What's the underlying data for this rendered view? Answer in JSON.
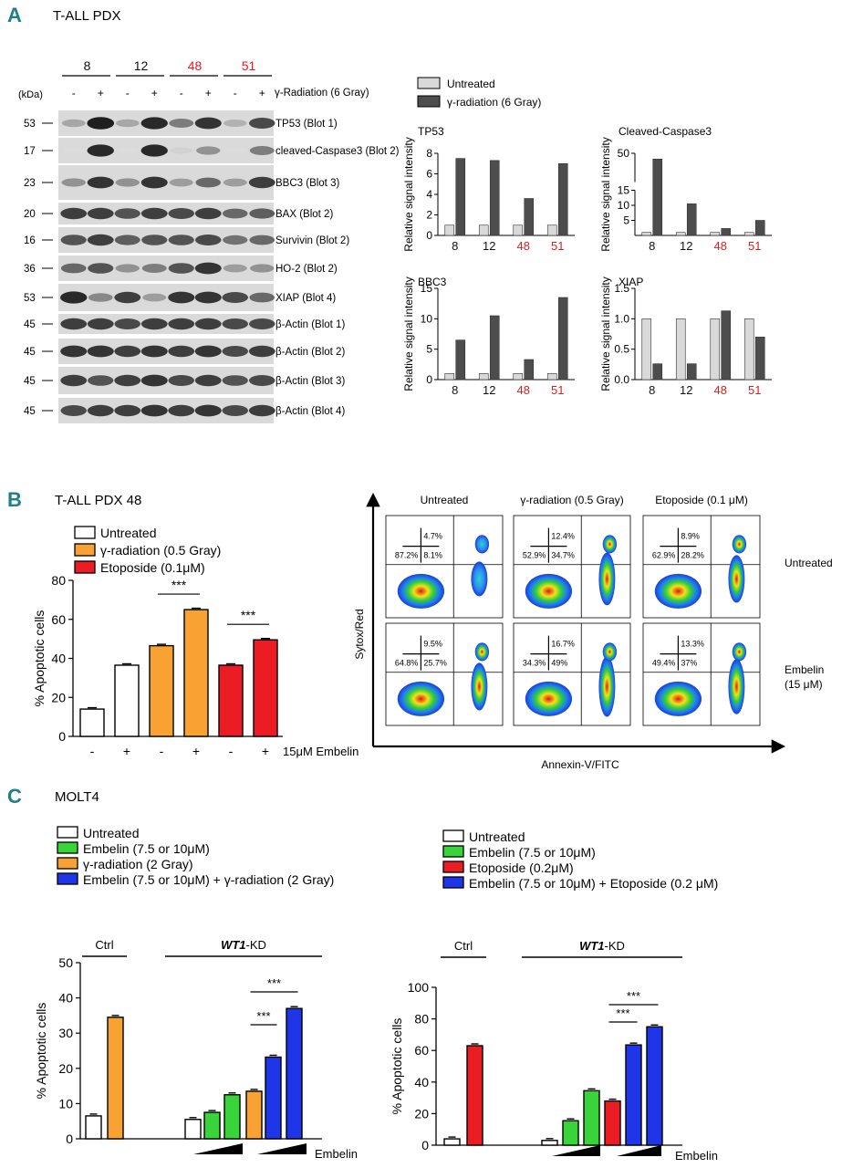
{
  "colors": {
    "panel_letter": "#1f7f8a",
    "red_label": "#e31a1c",
    "untreated": "#ffffff",
    "gamma": "#f7a233",
    "etoposide": "#ec1c24",
    "embelin": "#39d43a",
    "combo": "#1e35e8",
    "bar_light": "#d9d9d9",
    "bar_dark": "#4d4d4d"
  },
  "panelA": {
    "letter": "A",
    "title": "T-ALL PDX",
    "kda_label": "(kDa)",
    "samples": [
      {
        "label": "8",
        "color": "#111111"
      },
      {
        "label": "12",
        "color": "#111111"
      },
      {
        "label": "48",
        "color": "#e31a1c"
      },
      {
        "label": "51",
        "color": "#e31a1c"
      }
    ],
    "treatments": [
      "-",
      "+",
      "-",
      "+",
      "-",
      "+",
      "-",
      "+"
    ],
    "treatment_label": "γ-Radiation (6 Gray)",
    "blots": [
      {
        "kda": "53",
        "label": "TP53 (Blot 1)",
        "bands": [
          0.3,
          0.95,
          0.3,
          0.9,
          0.5,
          0.85,
          0.25,
          0.75
        ]
      },
      {
        "kda": "17",
        "label": "cleaved-Caspase3 (Blot 2)",
        "bands": [
          0.05,
          0.9,
          0.05,
          0.9,
          0.1,
          0.4,
          0.05,
          0.5
        ]
      },
      {
        "kda": "23",
        "label": "BBC3 (Blot 3)",
        "bands": [
          0.4,
          0.85,
          0.4,
          0.85,
          0.35,
          0.6,
          0.35,
          0.8
        ]
      },
      {
        "kda": "20",
        "label": "BAX (Blot 2)",
        "bands": [
          0.8,
          0.8,
          0.7,
          0.8,
          0.75,
          0.8,
          0.6,
          0.65
        ]
      },
      {
        "kda": "16",
        "label": "Survivin (Blot 2)",
        "bands": [
          0.7,
          0.8,
          0.65,
          0.7,
          0.7,
          0.75,
          0.55,
          0.6
        ]
      },
      {
        "kda": "36",
        "label": "HO-2 (Blot 2)",
        "bands": [
          0.6,
          0.7,
          0.4,
          0.5,
          0.7,
          0.85,
          0.35,
          0.4
        ]
      },
      {
        "kda": "53",
        "label": "XIAP (Blot 4)",
        "bands": [
          0.9,
          0.45,
          0.8,
          0.35,
          0.85,
          0.85,
          0.75,
          0.6
        ]
      },
      {
        "kda": "45",
        "label": "β-Actin (Blot 1)",
        "bands": [
          0.8,
          0.8,
          0.75,
          0.8,
          0.8,
          0.8,
          0.75,
          0.75
        ]
      },
      {
        "kda": "45",
        "label": "β-Actin  (Blot 2)",
        "bands": [
          0.85,
          0.85,
          0.8,
          0.85,
          0.8,
          0.85,
          0.75,
          0.8
        ]
      },
      {
        "kda": "45",
        "label": "β-Actin (Blot 3)",
        "bands": [
          0.8,
          0.7,
          0.8,
          0.85,
          0.75,
          0.8,
          0.7,
          0.75
        ]
      },
      {
        "kda": "45",
        "label": "β-Actin  (Blot 4)",
        "bands": [
          0.75,
          0.8,
          0.8,
          0.85,
          0.8,
          0.85,
          0.75,
          0.8
        ]
      }
    ],
    "legend": [
      {
        "label": "Untreated",
        "color": "#d9d9d9"
      },
      {
        "label": "γ-radiation (6 Gray)",
        "color": "#4d4d4d"
      }
    ]
  },
  "chart_data": [
    {
      "id": "tp53",
      "type": "bar",
      "title": "TP53",
      "ylabel": "Relative signal intensity",
      "categories": [
        "8",
        "12",
        "48",
        "51"
      ],
      "category_colors": [
        "#111111",
        "#111111",
        "#e31a1c",
        "#e31a1c"
      ],
      "ylim": [
        0,
        8
      ],
      "yticks": [
        0,
        2,
        4,
        6,
        8
      ],
      "series": [
        {
          "name": "Untreated",
          "values": [
            1,
            1,
            1,
            1
          ]
        },
        {
          "name": "γ-radiation (6 Gray)",
          "values": [
            7.5,
            7.3,
            3.6,
            7.0
          ]
        }
      ]
    },
    {
      "id": "casp3",
      "type": "bar",
      "title": "Cleaved-Caspase3",
      "ylabel": "Relative signal intensity",
      "categories": [
        "8",
        "12",
        "48",
        "51"
      ],
      "category_colors": [
        "#111111",
        "#111111",
        "#e31a1c",
        "#e31a1c"
      ],
      "ylim": [
        0,
        50
      ],
      "axis_break": [
        15,
        45
      ],
      "yticks": [
        5,
        10,
        15,
        50
      ],
      "series": [
        {
          "name": "Untreated",
          "values": [
            1,
            1,
            1,
            1
          ]
        },
        {
          "name": "γ-radiation (6 Gray)",
          "values": [
            49,
            10.5,
            2.3,
            5
          ]
        }
      ]
    },
    {
      "id": "bbc3",
      "type": "bar",
      "title": "BBC3",
      "ylabel": "Relative signal intensity",
      "categories": [
        "8",
        "12",
        "48",
        "51"
      ],
      "category_colors": [
        "#111111",
        "#111111",
        "#e31a1c",
        "#e31a1c"
      ],
      "ylim": [
        0,
        15
      ],
      "yticks": [
        0,
        5,
        10,
        15
      ],
      "series": [
        {
          "name": "Untreated",
          "values": [
            1,
            1,
            1,
            1
          ]
        },
        {
          "name": "γ-radiation (6 Gray)",
          "values": [
            6.5,
            10.5,
            3.3,
            13.5
          ]
        }
      ]
    },
    {
      "id": "xiap",
      "type": "bar",
      "title": "XIAP",
      "ylabel": "Relative signal intensity",
      "categories": [
        "8",
        "12",
        "48",
        "51"
      ],
      "category_colors": [
        "#111111",
        "#111111",
        "#e31a1c",
        "#e31a1c"
      ],
      "ylim": [
        0,
        1.5
      ],
      "yticks": [
        0.0,
        0.5,
        1.0,
        1.5
      ],
      "series": [
        {
          "name": "Untreated",
          "values": [
            1.0,
            1.0,
            1.0,
            1.0
          ]
        },
        {
          "name": "γ-radiation (6 Gray)",
          "values": [
            0.26,
            0.26,
            1.13,
            0.7
          ]
        }
      ]
    },
    {
      "id": "bpdx",
      "type": "bar",
      "title": "T-ALL PDX 48",
      "ylabel": "% Apoptotic cells",
      "xlabel": "15μM Embelin",
      "ylim": [
        0,
        80
      ],
      "yticks": [
        0,
        20,
        40,
        60,
        80
      ],
      "categories": [
        "-",
        "+",
        "-",
        "+",
        "-",
        "+"
      ],
      "values": [
        14,
        36.5,
        46.5,
        65,
        36.5,
        49.5
      ],
      "colors": [
        "#ffffff",
        "#ffffff",
        "#f7a233",
        "#f7a233",
        "#ec1c24",
        "#ec1c24"
      ],
      "significance": [
        {
          "label": "***",
          "from": 2,
          "to": 3
        },
        {
          "label": "***",
          "from": 4,
          "to": 5
        }
      ],
      "legend": [
        {
          "label": "Untreated",
          "color": "#ffffff"
        },
        {
          "label": "γ-radiation (0.5 Gray)",
          "color": "#f7a233"
        },
        {
          "label": "Etoposide (0.1μM)",
          "color": "#ec1c24"
        }
      ]
    },
    {
      "id": "c1",
      "type": "bar",
      "title": "MOLT4",
      "ylabel": "% Apoptotic cells",
      "xlabel": "Embelin",
      "ylim": [
        0,
        50
      ],
      "yticks": [
        0,
        10,
        20,
        30,
        40,
        50
      ],
      "groups": [
        {
          "label": "Ctrl",
          "italic": ""
        },
        {
          "label": "-KD",
          "italic": "WT1"
        }
      ],
      "values": [
        6.5,
        34.5,
        5.5,
        7.5,
        12.5,
        13.5,
        23.2,
        37
      ],
      "colors": [
        "#ffffff",
        "#f7a233",
        "#ffffff",
        "#39d43a",
        "#39d43a",
        "#f7a233",
        "#1e35e8",
        "#1e35e8"
      ],
      "significance": [
        {
          "label": "***",
          "from": 5,
          "to": 6
        },
        {
          "label": "***",
          "from": 5,
          "to": 7
        }
      ],
      "legend": [
        {
          "label": "Untreated",
          "color": "#ffffff"
        },
        {
          "label": "Embelin (7.5 or 10μM)",
          "color": "#39d43a"
        },
        {
          "label": "γ-radiation (2 Gray)",
          "color": "#f7a233"
        },
        {
          "label": "Embelin (7.5 or 10μM)  +  γ-radiation  (2 Gray)",
          "color": "#1e35e8"
        }
      ]
    },
    {
      "id": "c2",
      "type": "bar",
      "title": "MOLT4",
      "ylabel": "% Apoptotic cells",
      "xlabel": "Embelin",
      "ylim": [
        0,
        100
      ],
      "yticks": [
        0,
        20,
        40,
        60,
        80,
        100
      ],
      "groups": [
        {
          "label": "Ctrl",
          "italic": ""
        },
        {
          "label": "-KD",
          "italic": "WT1"
        }
      ],
      "values": [
        4,
        63,
        3,
        15.5,
        34.5,
        28,
        63.5,
        75
      ],
      "colors": [
        "#ffffff",
        "#ec1c24",
        "#ffffff",
        "#39d43a",
        "#39d43a",
        "#ec1c24",
        "#1e35e8",
        "#1e35e8"
      ],
      "significance": [
        {
          "label": "***",
          "from": 5,
          "to": 6
        },
        {
          "label": "***",
          "from": 5,
          "to": 7
        }
      ],
      "legend": [
        {
          "label": "Untreated",
          "color": "#ffffff"
        },
        {
          "label": "Embelin (7.5 or 10μM)",
          "color": "#39d43a"
        },
        {
          "label": "Etoposide (0.2μM)",
          "color": "#ec1c24"
        },
        {
          "label": "Embelin (7.5 or 10μM)   +  Etoposide  (0.2 μM)",
          "color": "#1e35e8"
        }
      ]
    }
  ],
  "panelB": {
    "letter": "B",
    "flow": {
      "columns": [
        "Untreated",
        "γ-radiation (0.5 Gray)",
        "Etoposide (0.1 μM)"
      ],
      "rows": [
        "Untreated",
        "Embelin (15 μM)"
      ],
      "yaxis": "Sytox/Red",
      "xaxis": "Annexin-V/FITC",
      "plots": [
        {
          "tr": "4.7%",
          "bl": "87.2%",
          "br": "8.1%",
          "apoptotic": 0.2
        },
        {
          "tr": "12.4%",
          "bl": "52.9%",
          "br": "34.7%",
          "apoptotic": 0.55
        },
        {
          "tr": "8.9%",
          "bl": "62.9%",
          "br": "28.2%",
          "apoptotic": 0.45
        },
        {
          "tr": "9.5%",
          "bl": "64.8%",
          "br": "25.7%",
          "apoptotic": 0.45
        },
        {
          "tr": "16.7%",
          "bl": "34.3%",
          "br": "49%",
          "apoptotic": 0.7
        },
        {
          "tr": "13.3%",
          "bl": "49.4%",
          "br": "37%",
          "apoptotic": 0.6
        }
      ]
    }
  },
  "panelC": {
    "letter": "C"
  }
}
